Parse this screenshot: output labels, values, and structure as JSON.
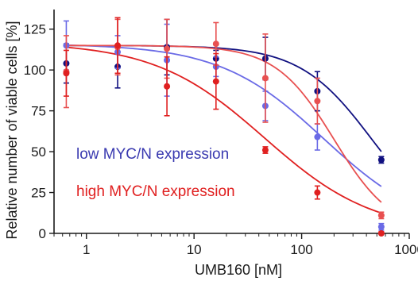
{
  "chart_data": {
    "type": "scatter",
    "xlabel": "UMB160 [nM]",
    "ylabel": "Relative number of viable cells [%]",
    "xscale": "log",
    "xlim": [
      0.5,
      1000
    ],
    "ylim": [
      0,
      137
    ],
    "x_ticks": [
      1,
      10,
      100,
      1000
    ],
    "x_tick_labels": [
      "1",
      "10",
      "100",
      "1000"
    ],
    "y_ticks": [
      0,
      25,
      50,
      75,
      100,
      125
    ],
    "y_tick_labels": [
      "0",
      "25",
      "50",
      "75",
      "100",
      "125"
    ],
    "grid": false,
    "annotations": [
      {
        "text": "low MYC/N expression",
        "color": "#3a3ab0"
      },
      {
        "text": "high MYC/N expression",
        "color": "#e02020"
      }
    ],
    "series": [
      {
        "color": "#101080",
        "x": [
          0.65,
          1.95,
          5.6,
          16,
          46,
          140,
          550
        ],
        "y": [
          104,
          102,
          114,
          107,
          107,
          87,
          45
        ],
        "err": [
          12,
          13,
          17,
          5,
          13,
          12,
          2
        ],
        "fit": {
          "top": 115,
          "bottom": 0,
          "ic50": 450,
          "hill": 1.3
        }
      },
      {
        "color": "#6a6ae6",
        "x": [
          0.65,
          1.95,
          5.6,
          16,
          46,
          140,
          550
        ],
        "y": [
          115,
          111,
          106,
          102,
          78,
          59,
          4
        ],
        "err": [
          15,
          10,
          22,
          6,
          9,
          8,
          2
        ],
        "fit": {
          "top": 116,
          "bottom": 0,
          "ic50": 160,
          "hill": 0.9
        }
      },
      {
        "color": "#e85050",
        "x": [
          0.65,
          1.95,
          5.6,
          16,
          46,
          140,
          550
        ],
        "y": [
          99,
          114,
          113,
          116,
          95,
          81,
          11
        ],
        "err": [
          22,
          17,
          18,
          13,
          27,
          14,
          2
        ],
        "fit": {
          "top": 115,
          "bottom": 0,
          "ic50": 200,
          "hill": 1.6
        }
      },
      {
        "color": "#e02020",
        "x": [
          0.65,
          1.95,
          5.6,
          16,
          46,
          140,
          550
        ],
        "y": [
          98,
          115,
          90,
          93,
          51,
          25,
          0
        ],
        "err": [
          14,
          17,
          18,
          17,
          2,
          4,
          1
        ],
        "fit": {
          "top": 117,
          "bottom": 0,
          "ic50": 45,
          "hill": 0.85
        }
      }
    ]
  }
}
